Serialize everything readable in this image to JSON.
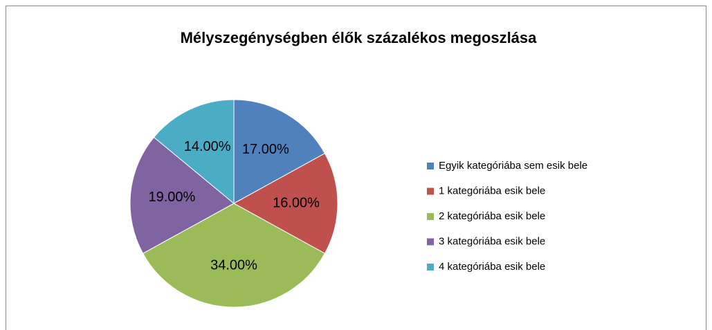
{
  "chart_data": {
    "type": "pie",
    "title": "Mélyszegénységben élők százalékos megoszlása",
    "categories": [
      "Egyik kategóriába sem esik bele",
      "1 kategóriába esik bele",
      "2 kategóriába esik bele",
      "3 kategóriába esik bele",
      "4 kategóriába esik bele"
    ],
    "values": [
      17,
      16,
      34,
      19,
      14
    ],
    "value_labels": [
      "17.00%",
      "16.00%",
      "34.00%",
      "19.00%",
      "14.00%"
    ],
    "colors": [
      "#4f81bd",
      "#c0504d",
      "#9bbb59",
      "#8064a2",
      "#4bacc6"
    ],
    "legend": "right"
  }
}
